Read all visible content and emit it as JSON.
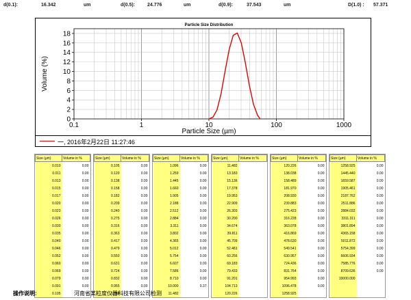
{
  "header": {
    "d01_label": "d(0.1):",
    "d01_value": "16.342",
    "d01_unit": "um",
    "d05_label": "d(0.5):",
    "d05_value": "24.776",
    "d05_unit": "um",
    "d09_label": "d(0.9):",
    "d09_value": "37.543",
    "d09_unit": "um",
    "d10_label": "D(1.0) :",
    "d10_value": "57.371"
  },
  "legend": {
    "text": "一, 2016年2月22日 11:27:46",
    "color": "#e00000"
  },
  "table_headers": {
    "size": "Size (µm)",
    "volume": "Volume in %"
  },
  "tables": [
    {
      "sizes": [
        "0.010",
        "0.011",
        "0.013",
        "0.015",
        "0.017",
        "0.020",
        "0.023",
        "0.026",
        "0.030",
        "0.035",
        "0.040",
        "0.046",
        "0.052",
        "0.060",
        "0.069",
        "0.079",
        "0.091",
        "0.105"
      ],
      "volumes": [
        "0.00",
        "0.00",
        "0.00",
        "0.00",
        "0.00",
        "0.00",
        "0.00",
        "0.00",
        "0.00",
        "0.00",
        "0.00",
        "0.00",
        "0.00",
        "0.00",
        "0.00",
        "0.00",
        "0.00",
        ""
      ]
    },
    {
      "sizes": [
        "0.105",
        "0.120",
        "0.138",
        "0.158",
        "0.182",
        "0.209",
        "0.240",
        "0.275",
        "0.316",
        "0.363",
        "0.417",
        "0.479",
        "0.550",
        "0.631",
        "0.724",
        "0.832",
        "0.955",
        "1.096"
      ],
      "volumes": [
        "0.00",
        "0.00",
        "0.00",
        "0.00",
        "0.00",
        "0.00",
        "0.00",
        "0.00",
        "0.00",
        "0.00",
        "0.00",
        "0.00",
        "0.00",
        "0.00",
        "0.00",
        "0.00",
        "0.00",
        ""
      ]
    },
    {
      "sizes": [
        "1.096",
        "1.259",
        "1.445",
        "1.660",
        "1.905",
        "2.188",
        "2.512",
        "2.884",
        "3.311",
        "3.802",
        "4.365",
        "5.012",
        "5.754",
        "6.607",
        "7.586",
        "8.710",
        "10.000",
        "11.482"
      ],
      "volumes": [
        "0.00",
        "0.00",
        "0.00",
        "0.00",
        "0.00",
        "0.00",
        "0.00",
        "0.00",
        "0.00",
        "0.00",
        "0.00",
        "0.00",
        "0.00",
        "0.00",
        "0.00",
        "0.00",
        "0.37",
        ""
      ]
    },
    {
      "sizes": [
        "11.482",
        "13.183",
        "15.136",
        "17.378",
        "19.953",
        "22.909",
        "26.303",
        "30.200",
        "34.674",
        "39.811",
        "45.709",
        "52.481",
        "60.256",
        "69.183",
        "79.433",
        "91.201",
        "104.713",
        "120.226"
      ],
      "volumes": [
        "",
        "",
        "",
        "",
        "",
        "",
        "",
        "",
        "",
        "",
        "",
        "",
        "",
        "",
        "",
        "",
        "",
        ""
      ]
    },
    {
      "sizes": [
        "120.226",
        "138.038",
        "158.489",
        "181.970",
        "208.930",
        "239.883",
        "275.423",
        "316.228",
        "363.078",
        "416.869",
        "478.630",
        "549.541",
        "630.957",
        "724.436",
        "831.764",
        "954.993",
        "1096.478",
        "1258.925"
      ],
      "volumes": [
        "0.00",
        "0.00",
        "0.00",
        "0.00",
        "0.00",
        "0.00",
        "0.00",
        "0.00",
        "0.00",
        "0.00",
        "0.00",
        "0.00",
        "0.00",
        "0.00",
        "0.00",
        "0.00",
        "0.00",
        ""
      ]
    },
    {
      "sizes": [
        "1258.925",
        "1445.440",
        "1659.587",
        "1905.461",
        "2187.762",
        "2511.886",
        "2884.032",
        "3311.311",
        "3801.894",
        "4365.158",
        "5011.872",
        "5754.399",
        "6606.934",
        "7585.776",
        "8709.636",
        "10000.000",
        "",
        ""
      ],
      "volumes": [
        "0.00",
        "0.00",
        "0.00",
        "0.00",
        "0.00",
        "0.00",
        "0.00",
        "0.00",
        "0.00",
        "0.00",
        "0.00",
        "0.00",
        "0.00",
        "0.00",
        "0.00",
        "",
        "",
        ""
      ]
    }
  ],
  "footer": {
    "label": "操作说明:",
    "company": "河南省某粒度仪器科技有限公司检测"
  },
  "chart_data": {
    "type": "line",
    "title": "Particle Size Distribution",
    "xlabel": "Particle Size (µm)",
    "ylabel": "Volume (%)",
    "xscale": "log",
    "xlim": [
      0.1,
      1000
    ],
    "ylim": [
      0,
      19
    ],
    "x_ticks": [
      "0.1",
      "1",
      "10",
      "100",
      "1000"
    ],
    "y_ticks": [
      "0",
      "2",
      "4",
      "6",
      "8",
      "10",
      "12",
      "14",
      "16",
      "18"
    ],
    "grid": true,
    "series": [
      {
        "color": "#e00000",
        "x": [
          10.0,
          11.482,
          13.183,
          15.136,
          17.378,
          19.953,
          22.909,
          26.303,
          30.2,
          34.674,
          39.811,
          45.709,
          52.481,
          57.371
        ],
        "y": [
          0.0,
          0.37,
          1.9,
          5.3,
          10.1,
          14.6,
          17.6,
          18.1,
          16.0,
          11.8,
          7.0,
          3.1,
          0.8,
          0.0
        ]
      }
    ]
  }
}
